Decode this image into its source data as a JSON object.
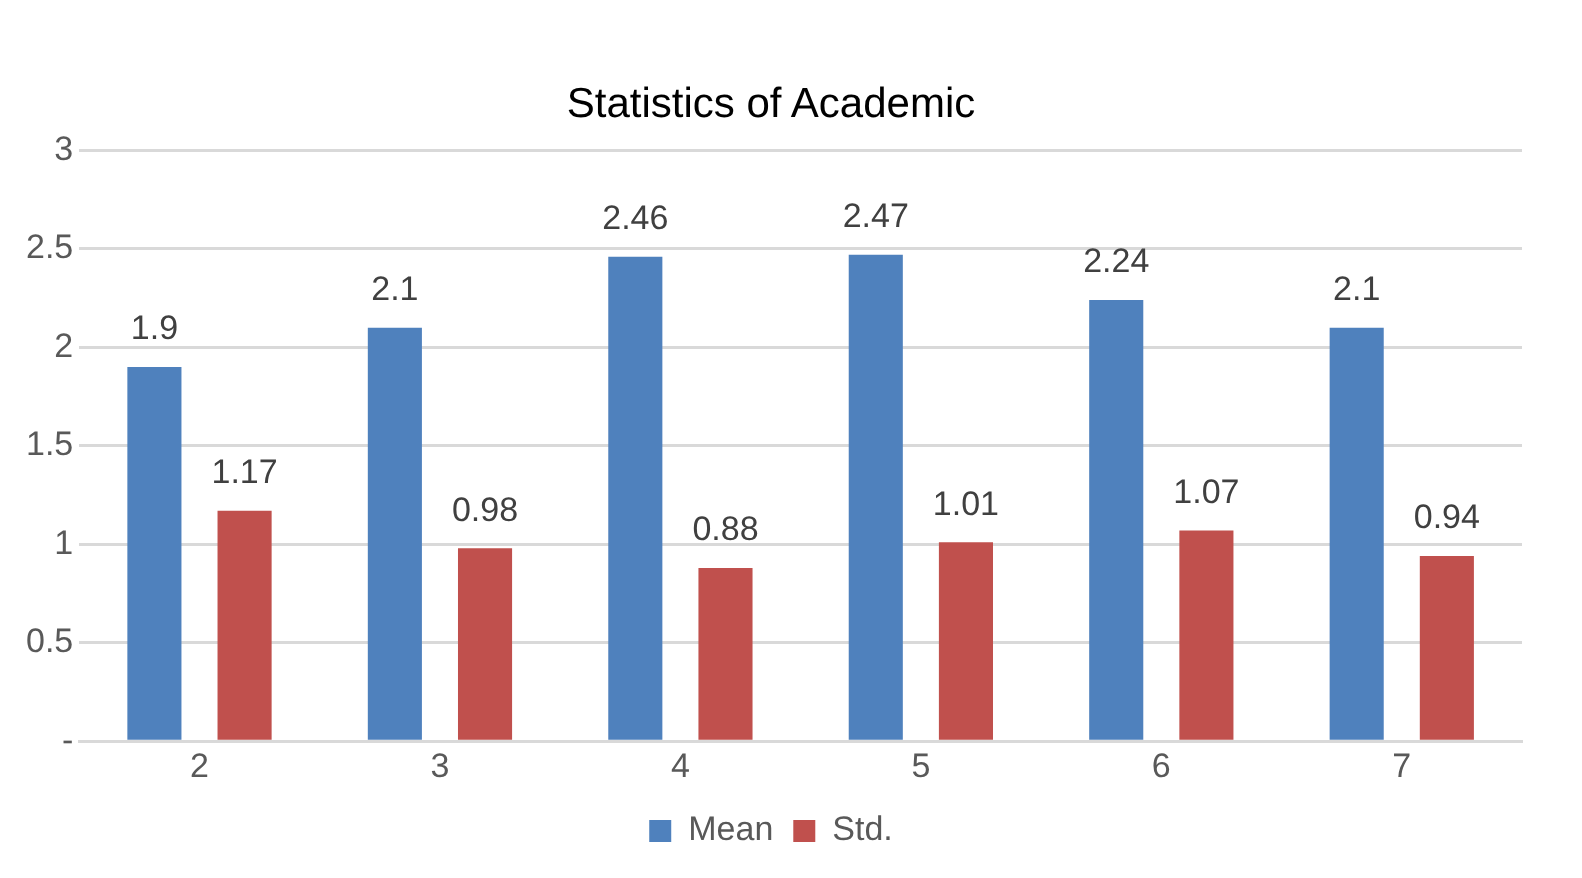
{
  "chart_data": {
    "type": "bar",
    "title": "Statistics of Academic",
    "categories": [
      "2",
      "3",
      "4",
      "5",
      "6",
      "7"
    ],
    "series": [
      {
        "name": "Mean",
        "color": "#4f81bd",
        "values": [
          1.9,
          2.1,
          2.46,
          2.47,
          2.24,
          2.1
        ]
      },
      {
        "name": "Std.",
        "color": "#c0504d",
        "values": [
          1.17,
          0.98,
          0.88,
          1.01,
          1.07,
          0.94
        ]
      }
    ],
    "ylim": [
      0,
      3
    ],
    "yticks": [
      {
        "value": 0,
        "label": "-"
      },
      0.5,
      1,
      1.5,
      2,
      2.5,
      3
    ],
    "grid": "y",
    "legend": "bottom",
    "data_labels": true
  }
}
